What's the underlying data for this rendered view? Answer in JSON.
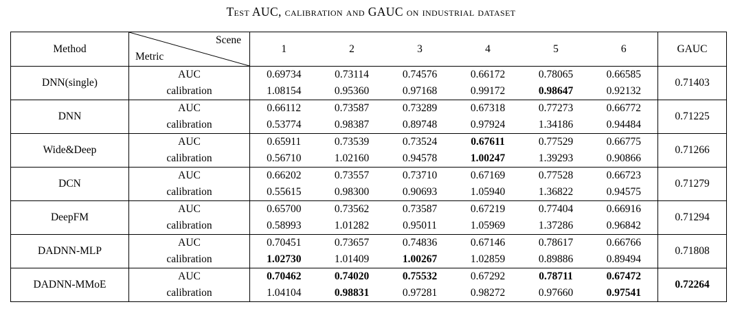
{
  "title": "Test AUC, calibration and GAUC on industrial dataset",
  "table": {
    "header": {
      "method": "Method",
      "scene_label": "Scene",
      "metric_label": "Metric",
      "scenes": [
        "1",
        "2",
        "3",
        "4",
        "5",
        "6"
      ],
      "gauc": "GAUC"
    },
    "metric_row_labels": {
      "auc": "AUC",
      "calibration": "calibration"
    },
    "rows": [
      {
        "method": "DNN(single)",
        "auc": [
          "0.69734",
          "0.73114",
          "0.74576",
          "0.66172",
          "0.78065",
          "0.66585"
        ],
        "auc_bold": [
          false,
          false,
          false,
          false,
          false,
          false
        ],
        "calibration": [
          "1.08154",
          "0.95360",
          "0.97168",
          "0.99172",
          "0.98647",
          "0.92132"
        ],
        "calibration_bold": [
          false,
          false,
          false,
          false,
          true,
          false
        ],
        "gauc": "0.71403",
        "gauc_bold": false
      },
      {
        "method": "DNN",
        "auc": [
          "0.66112",
          "0.73587",
          "0.73289",
          "0.67318",
          "0.77273",
          "0.66772"
        ],
        "auc_bold": [
          false,
          false,
          false,
          false,
          false,
          false
        ],
        "calibration": [
          "0.53774",
          "0.98387",
          "0.89748",
          "0.97924",
          "1.34186",
          "0.94484"
        ],
        "calibration_bold": [
          false,
          false,
          false,
          false,
          false,
          false
        ],
        "gauc": "0.71225",
        "gauc_bold": false
      },
      {
        "method": "Wide&Deep",
        "auc": [
          "0.65911",
          "0.73539",
          "0.73524",
          "0.67611",
          "0.77529",
          "0.66775"
        ],
        "auc_bold": [
          false,
          false,
          false,
          true,
          false,
          false
        ],
        "calibration": [
          "0.56710",
          "1.02160",
          "0.94578",
          "1.00247",
          "1.39293",
          "0.90866"
        ],
        "calibration_bold": [
          false,
          false,
          false,
          true,
          false,
          false
        ],
        "gauc": "0.71266",
        "gauc_bold": false
      },
      {
        "method": "DCN",
        "auc": [
          "0.66202",
          "0.73557",
          "0.73710",
          "0.67169",
          "0.77528",
          "0.66723"
        ],
        "auc_bold": [
          false,
          false,
          false,
          false,
          false,
          false
        ],
        "calibration": [
          "0.55615",
          "0.98300",
          "0.90693",
          "1.05940",
          "1.36822",
          "0.94575"
        ],
        "calibration_bold": [
          false,
          false,
          false,
          false,
          false,
          false
        ],
        "gauc": "0.71279",
        "gauc_bold": false
      },
      {
        "method": "DeepFM",
        "auc": [
          "0.65700",
          "0.73562",
          "0.73587",
          "0.67219",
          "0.77404",
          "0.66916"
        ],
        "auc_bold": [
          false,
          false,
          false,
          false,
          false,
          false
        ],
        "calibration": [
          "0.58993",
          "1.01282",
          "0.95011",
          "1.05969",
          "1.37286",
          "0.96842"
        ],
        "calibration_bold": [
          false,
          false,
          false,
          false,
          false,
          false
        ],
        "gauc": "0.71294",
        "gauc_bold": false
      },
      {
        "method": "DADNN-MLP",
        "auc": [
          "0.70451",
          "0.73657",
          "0.74836",
          "0.67146",
          "0.78617",
          "0.66766"
        ],
        "auc_bold": [
          false,
          false,
          false,
          false,
          false,
          false
        ],
        "calibration": [
          "1.02730",
          "1.01409",
          "1.00267",
          "1.02859",
          "0.89886",
          "0.89494"
        ],
        "calibration_bold": [
          true,
          false,
          true,
          false,
          false,
          false
        ],
        "gauc": "0.71808",
        "gauc_bold": false
      },
      {
        "method": "DADNN-MMoE",
        "auc": [
          "0.70462",
          "0.74020",
          "0.75532",
          "0.67292",
          "0.78711",
          "0.67472"
        ],
        "auc_bold": [
          true,
          true,
          true,
          false,
          true,
          true
        ],
        "calibration": [
          "1.04104",
          "0.98831",
          "0.97281",
          "0.98272",
          "0.97660",
          "0.97541"
        ],
        "calibration_bold": [
          false,
          true,
          false,
          false,
          false,
          true
        ],
        "gauc": "0.72264",
        "gauc_bold": true
      }
    ]
  }
}
